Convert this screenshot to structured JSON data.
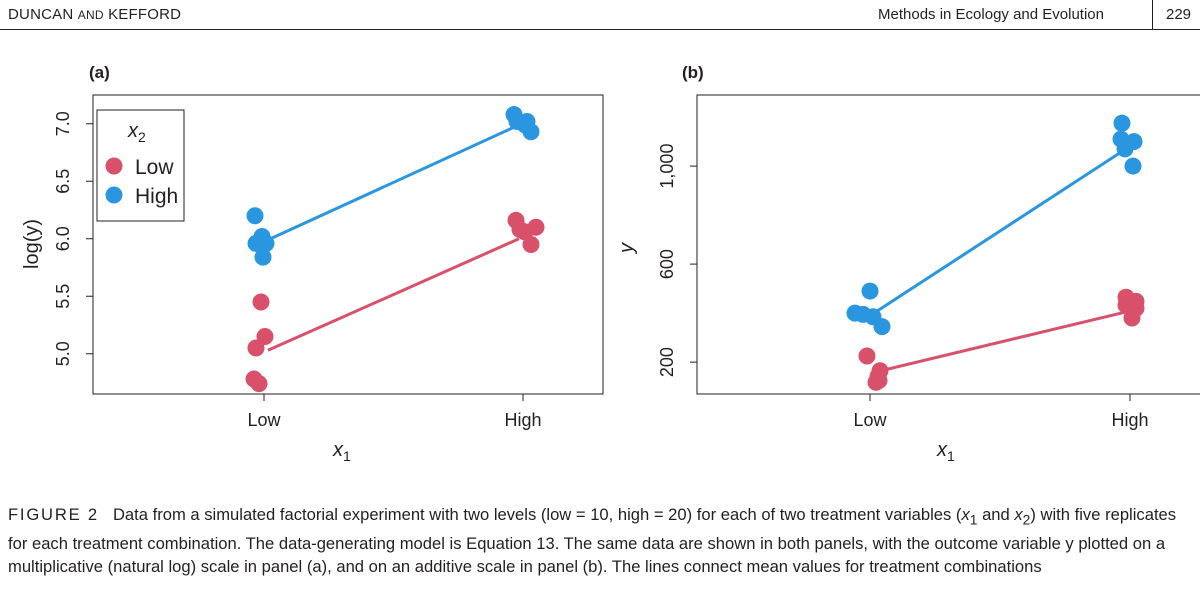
{
  "header": {
    "authors_first": "DUNCAN",
    "authors_and": "AND",
    "authors_last": "KEFFORD",
    "journal": "Methods in Ecology and Evolution",
    "page_number": "229"
  },
  "colors": {
    "low": "#d9506a",
    "high": "#2b96e0",
    "axis": "#231f20"
  },
  "chart_data": [
    {
      "type": "scatter",
      "panel_label": "(a)",
      "ylabel": "log(y)",
      "ylabel_italic_part": "y",
      "xlabel": "x1",
      "xlabel_base": "x",
      "xlabel_sub": "1",
      "categories": [
        "Low",
        "High"
      ],
      "yticks": [
        "5.0",
        "5.5",
        "6.0",
        "6.5",
        "7.0"
      ],
      "ytick_values": [
        5.0,
        5.5,
        6.0,
        6.5,
        7.0
      ],
      "ylim": [
        4.65,
        7.25
      ],
      "legend": {
        "title": "x2",
        "title_base": "x",
        "title_sub": "2",
        "entries": [
          "Low",
          "High"
        ],
        "position": "top-left"
      },
      "series": [
        {
          "name": "Low",
          "points": [
            {
              "x": "Low",
              "y": 5.45
            },
            {
              "x": "Low",
              "y": 5.15
            },
            {
              "x": "Low",
              "y": 5.05
            },
            {
              "x": "Low",
              "y": 4.78
            },
            {
              "x": "Low",
              "y": 4.74
            },
            {
              "x": "High",
              "y": 6.16
            },
            {
              "x": "High",
              "y": 6.08
            },
            {
              "x": "High",
              "y": 6.1
            },
            {
              "x": "High",
              "y": 6.06
            },
            {
              "x": "High",
              "y": 5.95
            }
          ],
          "means": [
            5.03,
            6.0
          ]
        },
        {
          "name": "High",
          "points": [
            {
              "x": "Low",
              "y": 6.2
            },
            {
              "x": "Low",
              "y": 6.02
            },
            {
              "x": "Low",
              "y": 5.96
            },
            {
              "x": "Low",
              "y": 5.96
            },
            {
              "x": "Low",
              "y": 5.84
            },
            {
              "x": "High",
              "y": 7.08
            },
            {
              "x": "High",
              "y": 7.02
            },
            {
              "x": "High",
              "y": 7.02
            },
            {
              "x": "High",
              "y": 6.99
            },
            {
              "x": "High",
              "y": 6.93
            }
          ],
          "means": [
            5.99,
            6.99
          ]
        }
      ]
    },
    {
      "type": "scatter",
      "panel_label": "(b)",
      "ylabel": "y",
      "xlabel": "x1",
      "xlabel_base": "x",
      "xlabel_sub": "1",
      "categories": [
        "Low",
        "High"
      ],
      "yticks": [
        "200",
        "600",
        "1,000"
      ],
      "ytick_values": [
        200,
        600,
        1000
      ],
      "ylim": [
        70,
        1290
      ],
      "series": [
        {
          "name": "Low",
          "points": [
            {
              "x": "Low",
              "y": 225
            },
            {
              "x": "Low",
              "y": 165
            },
            {
              "x": "Low",
              "y": 142
            },
            {
              "x": "Low",
              "y": 125
            },
            {
              "x": "Low",
              "y": 118
            },
            {
              "x": "High",
              "y": 465
            },
            {
              "x": "High",
              "y": 448
            },
            {
              "x": "High",
              "y": 432
            },
            {
              "x": "High",
              "y": 420
            },
            {
              "x": "High",
              "y": 380
            }
          ],
          "means": [
            158,
            405
          ]
        },
        {
          "name": "High",
          "points": [
            {
              "x": "Low",
              "y": 490
            },
            {
              "x": "Low",
              "y": 400
            },
            {
              "x": "Low",
              "y": 395
            },
            {
              "x": "Low",
              "y": 385
            },
            {
              "x": "Low",
              "y": 345
            },
            {
              "x": "High",
              "y": 1175
            },
            {
              "x": "High",
              "y": 1110
            },
            {
              "x": "High",
              "y": 1100
            },
            {
              "x": "High",
              "y": 1070
            },
            {
              "x": "High",
              "y": 1000
            }
          ],
          "means": [
            400,
            1070
          ]
        }
      ]
    }
  ],
  "caption": {
    "label": "FIGURE 2",
    "text_1": "Data from a simulated factorial experiment with two levels (low = 10, high = 20) for each of two treatment variables (",
    "var_x": "x",
    "sub_1": "1",
    "text_2": " and ",
    "sub_2": "2",
    "text_3": ") with five replicates for each treatment combination. The data-generating model is Equation 13. The same data are shown in both panels, with the outcome variable y plotted on a multiplicative (natural log) scale in panel (a), and on an additive scale in panel (b). The lines connect mean values for treatment combinations"
  }
}
